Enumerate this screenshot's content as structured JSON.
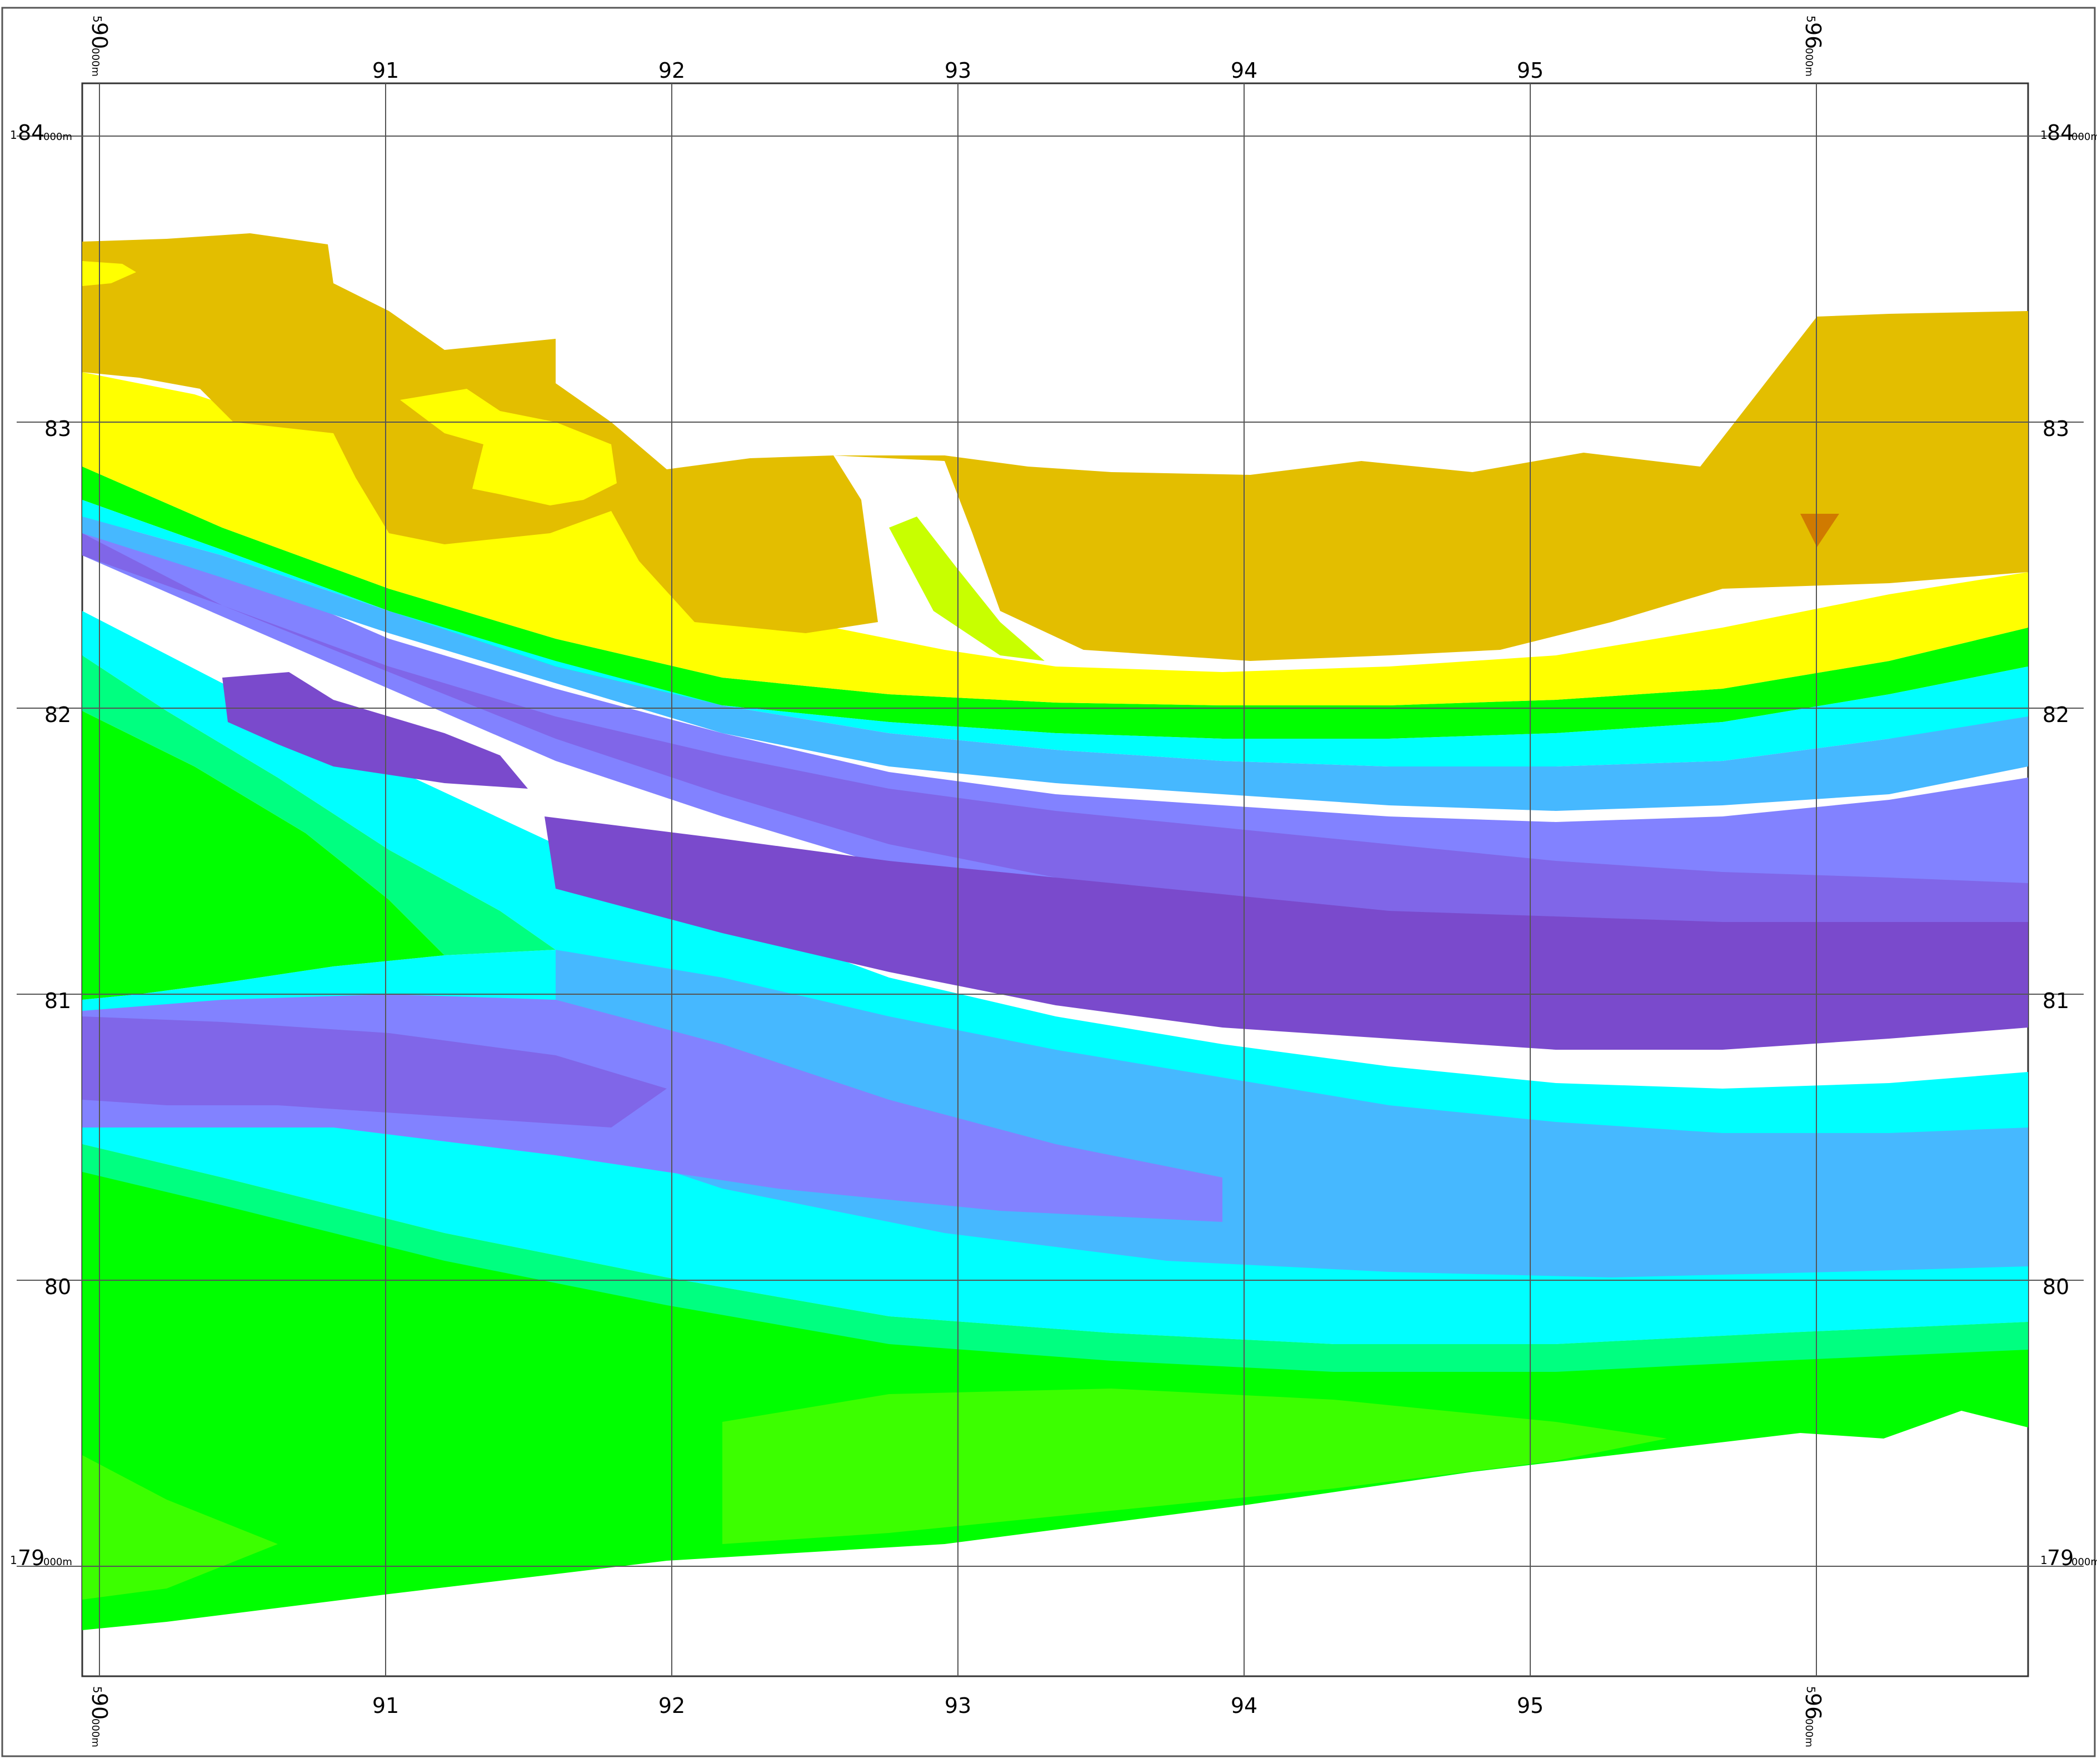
{
  "map": {
    "grid": {
      "x_labels": [
        "91",
        "92",
        "93",
        "94",
        "95"
      ],
      "y_labels": [
        "83",
        "82",
        "81",
        "80"
      ],
      "corner_x_left": {
        "sup": "5",
        "main": "90",
        "sub": "000m"
      },
      "corner_x_right": {
        "sup": "5",
        "main": "96",
        "sub": "000m"
      },
      "corner_y_top": {
        "sup": "1",
        "main": "84",
        "sub": "000m"
      },
      "corner_y_bottom": {
        "sup": "1",
        "main": "79",
        "sub": "000m"
      }
    },
    "palette": {
      "dark_gold": "#E3BE00",
      "yellow": "#FFFF00",
      "yellow_green": "#C8FF00",
      "green": "#00FF00",
      "green_bright": "#3CFF00",
      "spring_green": "#00FF80",
      "cyan": "#00FFFF",
      "sky_blue": "#46B8FF",
      "light_purple": "#8282FF",
      "purple": "#8066E8",
      "dark_purple": "#7A4ACC",
      "orange_spot": "#D07A00"
    }
  }
}
